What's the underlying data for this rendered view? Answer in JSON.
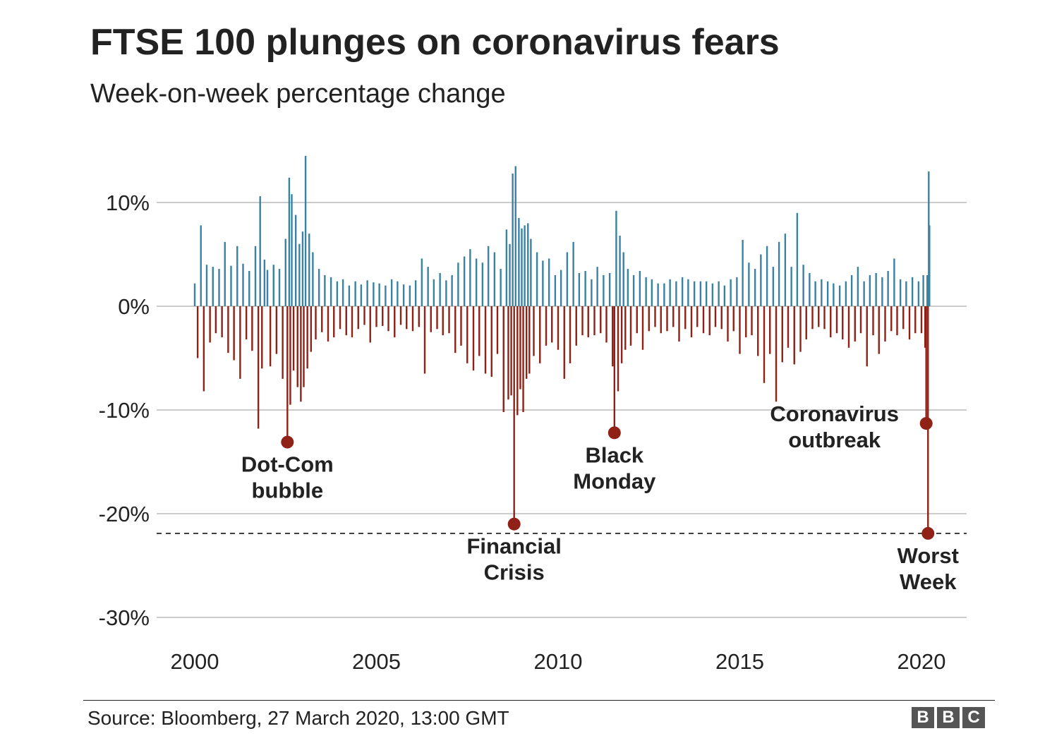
{
  "header": {
    "title": "FTSE 100 plunges on coronavirus fears",
    "subtitle": "Week-on-week percentage change"
  },
  "chart_data": {
    "type": "line",
    "title": "FTSE 100 plunges on coronavirus fears",
    "subtitle": "Week-on-week percentage change",
    "xlabel": "",
    "ylabel": "",
    "xlim": [
      2000,
      2020.3
    ],
    "ylim": [
      -30,
      14.5
    ],
    "x_ticks": [
      2000,
      2005,
      2010,
      2015,
      2020
    ],
    "x_tick_labels": [
      "2000",
      "2005",
      "2010",
      "2015",
      "2020"
    ],
    "y_ticks": [
      10,
      0,
      -10,
      -20,
      -30
    ],
    "y_tick_labels": [
      "10%",
      "0%",
      "-10%",
      "-20%",
      "-30%"
    ],
    "grid": "horizontal",
    "legend": "none",
    "colors": {
      "positive": "#3a82a3",
      "negative": "#8f2116",
      "grid": "#cccccc",
      "reference_line": "#333333"
    },
    "reference_line": {
      "y": -21.9,
      "style": "dashed"
    },
    "series": [
      {
        "x": [
          2000.0,
          2000.08,
          2000.17,
          2000.25,
          2000.33,
          2000.42,
          2000.5,
          2000.58,
          2000.67,
          2000.75,
          2000.83,
          2000.92,
          2001.0,
          2001.08,
          2001.17,
          2001.25,
          2001.33,
          2001.42,
          2001.5,
          2001.58,
          2001.67,
          2001.75,
          2001.8,
          2001.85,
          2001.92,
          2002.0,
          2002.08,
          2002.17,
          2002.25,
          2002.33,
          2002.42,
          2002.5,
          2002.55,
          2002.6,
          2002.63,
          2002.67,
          2002.72,
          2002.78,
          2002.83,
          2002.88,
          2002.92,
          2002.97,
          2003.0,
          2003.05,
          2003.1,
          2003.15,
          2003.2,
          2003.25,
          2003.33,
          2003.42,
          2003.5,
          2003.58,
          2003.67,
          2003.75,
          2003.83,
          2003.92,
          2004.0,
          2004.08,
          2004.17,
          2004.25,
          2004.33,
          2004.42,
          2004.5,
          2004.58,
          2004.67,
          2004.75,
          2004.83,
          2004.92,
          2005.0,
          2005.08,
          2005.17,
          2005.25,
          2005.33,
          2005.42,
          2005.5,
          2005.58,
          2005.67,
          2005.75,
          2005.83,
          2005.92,
          2006.0,
          2006.08,
          2006.17,
          2006.25,
          2006.33,
          2006.42,
          2006.5,
          2006.58,
          2006.67,
          2006.75,
          2006.83,
          2006.92,
          2007.0,
          2007.08,
          2007.17,
          2007.25,
          2007.33,
          2007.42,
          2007.5,
          2007.58,
          2007.67,
          2007.75,
          2007.83,
          2007.92,
          2008.0,
          2008.08,
          2008.17,
          2008.25,
          2008.33,
          2008.42,
          2008.5,
          2008.58,
          2008.63,
          2008.67,
          2008.71,
          2008.75,
          2008.79,
          2008.83,
          2008.88,
          2008.92,
          2008.96,
          2009.0,
          2009.04,
          2009.08,
          2009.13,
          2009.17,
          2009.21,
          2009.25,
          2009.33,
          2009.42,
          2009.5,
          2009.58,
          2009.67,
          2009.75,
          2009.83,
          2009.92,
          2010.0,
          2010.08,
          2010.17,
          2010.25,
          2010.33,
          2010.42,
          2010.5,
          2010.58,
          2010.67,
          2010.75,
          2010.83,
          2010.92,
          2011.0,
          2011.08,
          2011.17,
          2011.25,
          2011.33,
          2011.42,
          2011.5,
          2011.55,
          2011.6,
          2011.65,
          2011.7,
          2011.75,
          2011.8,
          2011.85,
          2011.92,
          2012.0,
          2012.08,
          2012.17,
          2012.25,
          2012.33,
          2012.42,
          2012.5,
          2012.58,
          2012.67,
          2012.75,
          2012.83,
          2012.92,
          2013.0,
          2013.08,
          2013.17,
          2013.25,
          2013.33,
          2013.42,
          2013.5,
          2013.58,
          2013.67,
          2013.75,
          2013.83,
          2013.92,
          2014.0,
          2014.08,
          2014.17,
          2014.25,
          2014.33,
          2014.42,
          2014.5,
          2014.58,
          2014.67,
          2014.75,
          2014.83,
          2014.92,
          2015.0,
          2015.08,
          2015.17,
          2015.25,
          2015.33,
          2015.42,
          2015.5,
          2015.58,
          2015.67,
          2015.75,
          2015.83,
          2015.92,
          2016.0,
          2016.08,
          2016.17,
          2016.25,
          2016.33,
          2016.42,
          2016.5,
          2016.58,
          2016.67,
          2016.75,
          2016.83,
          2016.92,
          2017.0,
          2017.08,
          2017.17,
          2017.25,
          2017.33,
          2017.42,
          2017.5,
          2017.58,
          2017.67,
          2017.75,
          2017.83,
          2017.92,
          2018.0,
          2018.08,
          2018.17,
          2018.25,
          2018.33,
          2018.42,
          2018.5,
          2018.58,
          2018.67,
          2018.75,
          2018.83,
          2018.92,
          2019.0,
          2019.08,
          2019.17,
          2019.25,
          2019.33,
          2019.42,
          2019.5,
          2019.58,
          2019.67,
          2019.75,
          2019.83,
          2019.92,
          2020.0,
          2020.05,
          2020.1,
          2020.13,
          2020.16,
          2020.18,
          2020.2,
          2020.22
        ],
        "y": [
          2.2,
          -5.0,
          7.8,
          -8.2,
          4.0,
          -3.5,
          3.8,
          -2.6,
          3.6,
          -3.0,
          6.2,
          -4.5,
          3.9,
          -5.2,
          5.8,
          -7.0,
          4.1,
          -3.2,
          3.4,
          -4.3,
          5.8,
          -11.8,
          10.6,
          -6.0,
          4.5,
          3.5,
          -5.8,
          4.0,
          -4.6,
          3.6,
          -7.0,
          6.5,
          -13.1,
          12.4,
          -9.5,
          10.8,
          -6.2,
          8.8,
          -7.8,
          6.0,
          -9.2,
          7.2,
          -7.8,
          14.5,
          -6.0,
          7.0,
          -4.4,
          5.2,
          -3.2,
          3.6,
          -2.5,
          3.0,
          -3.4,
          2.8,
          -3.0,
          2.4,
          -2.2,
          2.6,
          -2.8,
          2.0,
          -3.0,
          2.4,
          -2.2,
          2.1,
          -1.8,
          2.5,
          -3.5,
          2.3,
          -2.0,
          2.2,
          -1.9,
          2.0,
          -2.4,
          2.6,
          -3.0,
          2.4,
          -1.8,
          2.1,
          -2.2,
          2.0,
          -2.4,
          2.5,
          -2.0,
          4.6,
          -6.5,
          3.8,
          -2.5,
          2.6,
          -2.2,
          3.2,
          -2.8,
          2.5,
          -2.6,
          3.0,
          -4.5,
          4.2,
          -3.8,
          4.8,
          -5.5,
          5.5,
          -6.2,
          4.6,
          -4.8,
          4.2,
          -6.5,
          5.8,
          -6.8,
          5.2,
          -4.6,
          3.6,
          -10.2,
          7.4,
          -9.0,
          6.0,
          -8.6,
          12.8,
          -21.0,
          13.5,
          -10.5,
          8.5,
          -8.0,
          7.5,
          -10.2,
          7.8,
          -7.0,
          8.0,
          -6.5,
          6.5,
          -4.8,
          5.2,
          -5.5,
          4.4,
          -3.8,
          4.6,
          -3.5,
          3.0,
          -4.2,
          3.5,
          -7.0,
          5.2,
          -5.5,
          6.2,
          -3.8,
          3.2,
          -2.8,
          3.4,
          -3.0,
          2.6,
          -2.8,
          3.8,
          -2.6,
          3.0,
          -3.5,
          3.2,
          -5.8,
          -12.2,
          9.2,
          -8.2,
          6.8,
          -5.5,
          5.2,
          -4.2,
          3.6,
          -3.8,
          3.0,
          -2.6,
          3.4,
          -4.2,
          2.8,
          -2.4,
          2.6,
          -2.0,
          2.2,
          -2.6,
          2.2,
          -2.4,
          2.6,
          -2.0,
          2.4,
          -3.4,
          2.8,
          -2.2,
          2.6,
          -3.0,
          2.4,
          -2.0,
          2.4,
          -2.6,
          2.4,
          -2.8,
          2.2,
          -2.0,
          2.4,
          -2.2,
          2.0,
          -3.4,
          2.6,
          -2.4,
          2.8,
          -4.6,
          6.4,
          -3.0,
          4.2,
          -2.8,
          3.6,
          -4.8,
          5.0,
          -7.4,
          5.8,
          -4.6,
          3.8,
          -9.2,
          6.2,
          -5.4,
          7.0,
          -4.0,
          3.8,
          -5.6,
          9.0,
          -4.4,
          4.0,
          -3.2,
          3.2,
          -2.2,
          2.4,
          -2.0,
          2.6,
          -2.2,
          2.4,
          -3.0,
          2.2,
          -2.6,
          2.0,
          -3.2,
          2.4,
          -4.0,
          3.0,
          -3.4,
          3.8,
          -2.6,
          2.4,
          -5.8,
          3.0,
          -2.8,
          3.2,
          -4.6,
          2.8,
          -3.4,
          3.4,
          -2.4,
          4.6,
          -2.8,
          2.6,
          -2.2,
          2.4,
          -3.2,
          2.8,
          -2.6,
          2.4,
          -2.6,
          3.0,
          -4.0,
          -11.3,
          3.0,
          -21.9,
          13.0,
          7.8
        ]
      }
    ],
    "annotations": [
      {
        "text": "Dot-Com bubble",
        "lines": [
          "Dot-Com",
          "bubble"
        ],
        "x": 2002.55,
        "y": -13.1,
        "position": "below"
      },
      {
        "text": "Financial Crisis",
        "lines": [
          "Financial",
          "Crisis"
        ],
        "x": 2008.79,
        "y": -21.0,
        "position": "below"
      },
      {
        "text": "Black Monday",
        "lines": [
          "Black",
          "Monday"
        ],
        "x": 2011.55,
        "y": -12.2,
        "position": "below"
      },
      {
        "text": "Coronavirus outbreak",
        "lines": [
          "Coronavirus",
          "outbreak"
        ],
        "x": 2020.13,
        "y": -11.3,
        "position": "left"
      },
      {
        "text": "Worst Week",
        "lines": [
          "Worst",
          "Week"
        ],
        "x": 2020.18,
        "y": -21.9,
        "position": "below"
      }
    ]
  },
  "footer": {
    "source": "Source: Bloomberg, 27 March 2020, 13:00 GMT",
    "logo": [
      "B",
      "B",
      "C"
    ]
  }
}
